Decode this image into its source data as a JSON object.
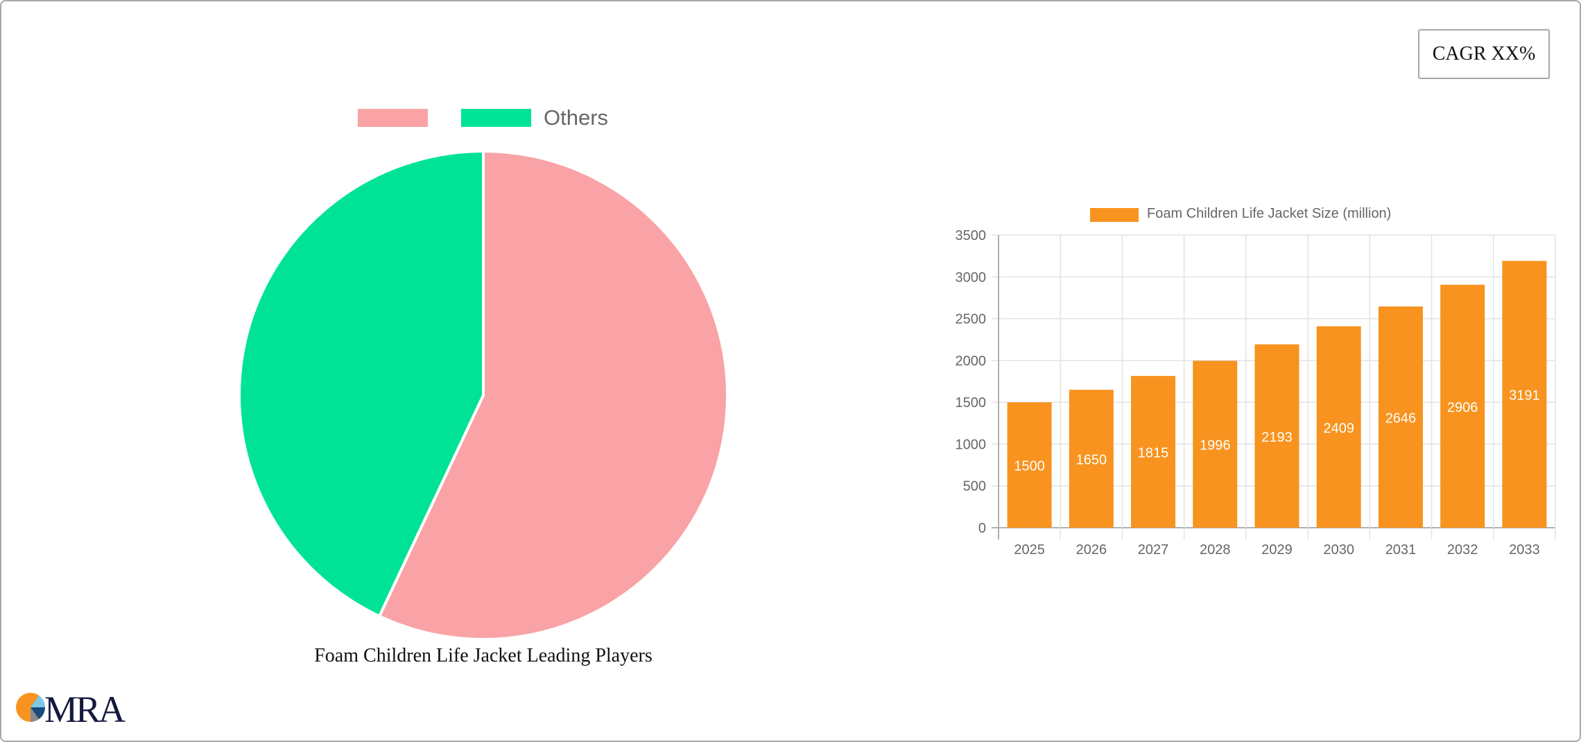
{
  "cagr_badge": {
    "label": "CAGR XX%"
  },
  "pie": {
    "title": "Foam Children Life Jacket Leading Players",
    "legend": [
      {
        "label": "",
        "color": "#f9a3a6"
      },
      {
        "label": "Others",
        "color": "#00e396"
      }
    ]
  },
  "bar": {
    "legend_label": "Foam Children Life Jacket Size (million)",
    "color": "#f7931e",
    "y_ticks": [
      "0",
      "500",
      "1000",
      "1500",
      "2000",
      "2500",
      "3000",
      "3500"
    ],
    "categories": [
      "2025",
      "2026",
      "2027",
      "2028",
      "2029",
      "2030",
      "2031",
      "2032",
      "2033"
    ],
    "values": [
      "1500",
      "1650",
      "1815",
      "1996",
      "2193",
      "2409",
      "2646",
      "2906",
      "3191"
    ]
  },
  "logo": {
    "text": "MRA"
  },
  "chart_data": [
    {
      "type": "pie",
      "title": "Foam Children Life Jacket Leading Players",
      "categories": [
        "",
        "Others"
      ],
      "values": [
        57,
        43
      ],
      "colors": [
        "#f9a3a6",
        "#00e396"
      ],
      "legend_position": "top"
    },
    {
      "type": "bar",
      "title": "",
      "categories": [
        "2025",
        "2026",
        "2027",
        "2028",
        "2029",
        "2030",
        "2031",
        "2032",
        "2033"
      ],
      "series": [
        {
          "name": "Foam Children Life Jacket Size (million)",
          "values": [
            1500,
            1650,
            1815,
            1996,
            2193,
            2409,
            2646,
            2906,
            3191
          ]
        }
      ],
      "xlabel": "",
      "ylabel": "",
      "ylim": [
        0,
        3500
      ],
      "y_ticks": [
        0,
        500,
        1000,
        1500,
        2000,
        2500,
        3000,
        3500
      ],
      "grid": true,
      "data_labels": true,
      "legend_position": "top"
    }
  ]
}
